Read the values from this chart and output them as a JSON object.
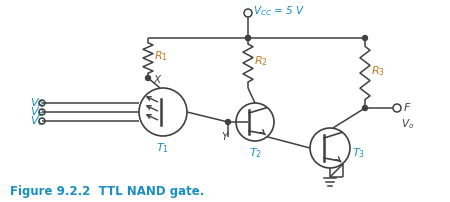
{
  "title": "Figure 9.2.2  TTL NAND gate.",
  "title_color": "#1a8fc1",
  "title_fontsize": 8.5,
  "vcc_label": "$V_{CC}$ = 5 V",
  "vcc_color": "#1a8fc1",
  "component_color": "#404040",
  "wire_color": "#404040",
  "label_color_orange": "#c87820",
  "label_color_blue": "#1a8fc1",
  "background": "#ffffff",
  "figsize": [
    4.5,
    2.02
  ],
  "dpi": 100
}
